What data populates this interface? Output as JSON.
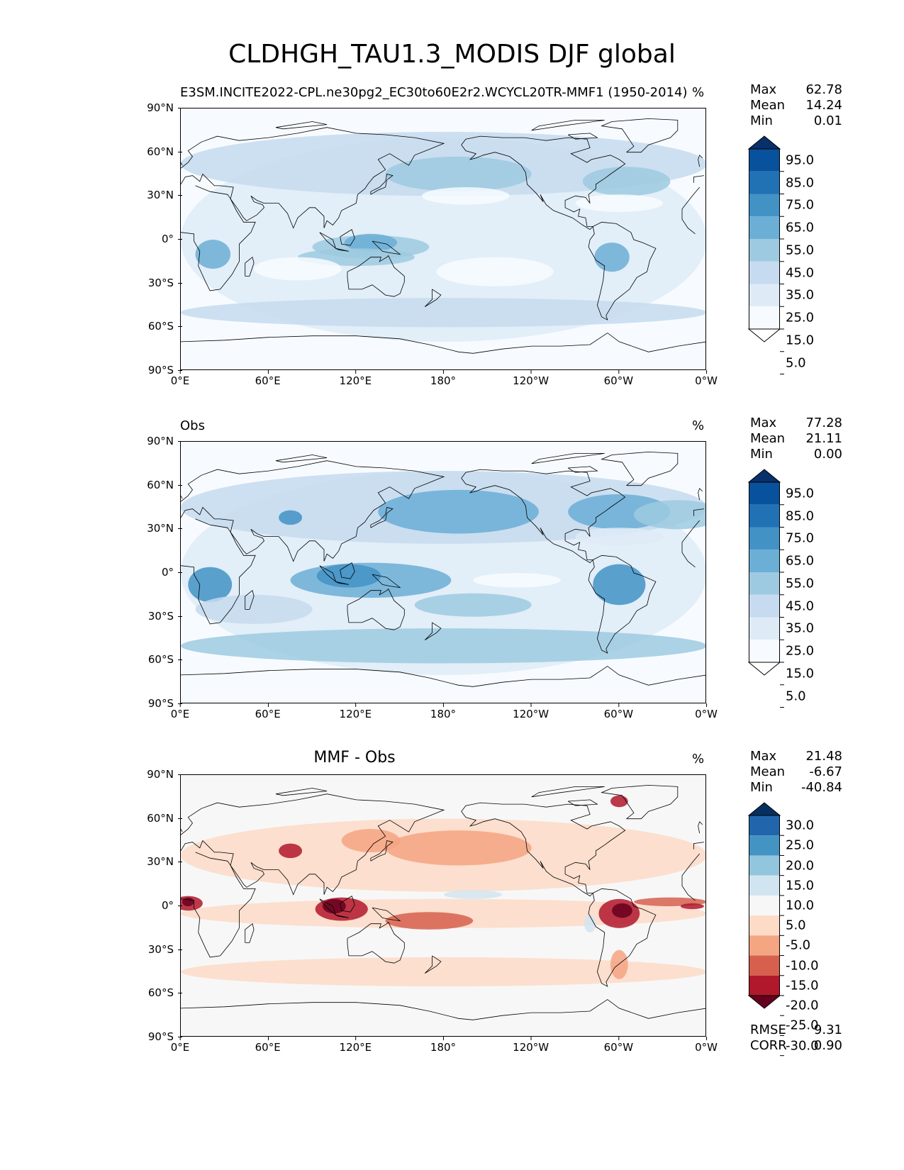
{
  "figure_title": "CLDHGH_TAU1.3_MODIS DJF global",
  "colors": {
    "blues": [
      "#ffffff",
      "#f7fbff",
      "#deebf7",
      "#c6dbef",
      "#9ecae1",
      "#6baed6",
      "#4292c6",
      "#2171b5",
      "#08519c",
      "#08306b"
    ],
    "diff": [
      "#67001f",
      "#b2182b",
      "#d6604d",
      "#f4a582",
      "#fddbc7",
      "#f7f7f7",
      "#d1e5f0",
      "#92c5de",
      "#4393c3",
      "#2166ac",
      "#053061"
    ]
  },
  "panels": [
    {
      "id": "test",
      "title_left": "E3SM.INCITE2022-CPL.ne30pg2_EC30to60E2r2.WCYCL20TR-MMF1 (1950-2014)",
      "title_center": "",
      "units": "%",
      "stats": [
        {
          "label": "Max",
          "value": "62.78"
        },
        {
          "label": "Mean",
          "value": "14.24"
        },
        {
          "label": "Min",
          "value": "0.01"
        }
      ],
      "colorbar_labels": [
        "95.0",
        "85.0",
        "75.0",
        "65.0",
        "55.0",
        "45.0",
        "35.0",
        "25.0",
        "15.0",
        "5.0"
      ]
    },
    {
      "id": "obs",
      "title_left": "Obs",
      "title_center": "",
      "units": "%",
      "stats": [
        {
          "label": "Max",
          "value": "77.28"
        },
        {
          "label": "Mean",
          "value": "21.11"
        },
        {
          "label": "Min",
          "value": "0.00"
        }
      ],
      "colorbar_labels": [
        "95.0",
        "85.0",
        "75.0",
        "65.0",
        "55.0",
        "45.0",
        "35.0",
        "25.0",
        "15.0",
        "5.0"
      ]
    },
    {
      "id": "diff",
      "title_left": "",
      "title_center": "MMF - Obs",
      "units": "%",
      "stats": [
        {
          "label": "Max",
          "value": "21.48"
        },
        {
          "label": "Mean",
          "value": "-6.67"
        },
        {
          "label": "Min",
          "value": "-40.84"
        }
      ],
      "colorbar_labels": [
        "30.0",
        "25.0",
        "20.0",
        "15.0",
        "10.0",
        "5.0",
        "-5.0",
        "-10.0",
        "-15.0",
        "-20.0",
        "-25.0",
        "-30.0"
      ],
      "extra_stats": [
        {
          "label": "RMSE",
          "value": "9.31"
        },
        {
          "label": "CORR",
          "value": "0.90"
        }
      ]
    }
  ],
  "lat_ticks": [
    "90°N",
    "60°N",
    "30°N",
    "0°",
    "30°S",
    "60°S",
    "90°S"
  ],
  "lon_ticks": [
    "0°E",
    "60°E",
    "120°E",
    "180°",
    "120°W",
    "60°W",
    "0°W"
  ]
}
